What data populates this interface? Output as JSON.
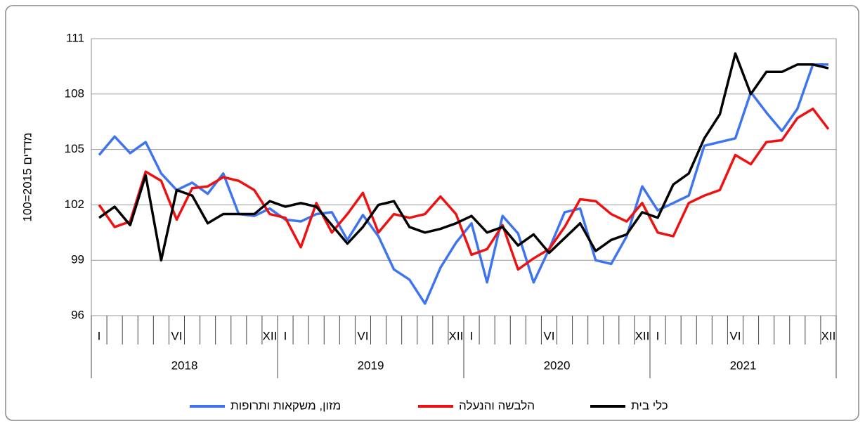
{
  "chart_data": {
    "type": "line",
    "ylabel": "מדדים 2015=100",
    "categories": [
      "I",
      null,
      null,
      null,
      null,
      "VI",
      null,
      null,
      null,
      null,
      null,
      "XII",
      "I",
      null,
      null,
      null,
      null,
      "VI",
      null,
      null,
      null,
      null,
      null,
      "XII",
      "I",
      null,
      null,
      null,
      null,
      "VI",
      null,
      null,
      null,
      null,
      null,
      "XII",
      "I",
      null,
      null,
      null,
      null,
      "VI",
      null,
      null,
      null,
      null,
      null,
      "XII"
    ],
    "years": [
      "2018",
      "2019",
      "2020",
      "2021"
    ],
    "ylim": [
      96,
      111
    ],
    "yticks": [
      96,
      99,
      102,
      105,
      108,
      111
    ],
    "grid": true,
    "series": [
      {
        "name": "מזון, משקאות ותרופות",
        "color": "#3f74f0",
        "values": [
          104.7,
          105.7,
          104.8,
          105.4,
          103.7,
          102.8,
          103.2,
          102.6,
          103.7,
          101.5,
          101.4,
          101.8,
          101.2,
          101.1,
          101.5,
          101.6,
          100.1,
          101.45,
          100.3,
          98.5,
          97.95,
          96.65,
          98.6,
          99.95,
          101.0,
          97.8,
          101.4,
          100.45,
          97.8,
          99.6,
          101.6,
          101.8,
          99.0,
          98.8,
          100.3,
          103.0,
          101.7,
          102.1,
          102.5,
          105.2,
          105.4,
          105.6,
          108.1,
          107.0,
          106.0,
          107.2,
          109.6,
          109.6
        ]
      },
      {
        "name": "הלבשה והנעלה",
        "color": "#ee1111",
        "values": [
          102.0,
          100.8,
          101.1,
          103.8,
          103.3,
          101.2,
          102.9,
          103.0,
          103.5,
          103.3,
          102.8,
          101.5,
          101.3,
          99.7,
          102.1,
          100.5,
          101.5,
          102.65,
          100.5,
          101.5,
          101.3,
          101.5,
          102.45,
          101.5,
          99.3,
          99.6,
          100.9,
          98.5,
          99.1,
          99.6,
          100.8,
          102.3,
          102.2,
          101.5,
          101.1,
          102.1,
          100.5,
          100.3,
          102.1,
          102.5,
          102.8,
          104.7,
          104.2,
          105.4,
          105.5,
          106.7,
          107.2,
          106.1
        ]
      },
      {
        "name": "כלי בית",
        "color": "#000000",
        "values": [
          101.3,
          101.9,
          100.9,
          103.6,
          99.0,
          102.8,
          102.5,
          101.0,
          101.5,
          101.5,
          101.5,
          102.2,
          101.9,
          102.1,
          101.9,
          100.9,
          99.9,
          100.8,
          102.0,
          102.2,
          100.8,
          100.5,
          100.7,
          101.0,
          101.4,
          100.5,
          100.8,
          99.8,
          100.4,
          99.4,
          100.2,
          101.0,
          99.5,
          100.1,
          100.4,
          101.6,
          101.3,
          103.1,
          103.7,
          105.6,
          106.9,
          110.2,
          108.0,
          109.2,
          109.2,
          109.6,
          109.6,
          109.4
        ]
      }
    ]
  }
}
